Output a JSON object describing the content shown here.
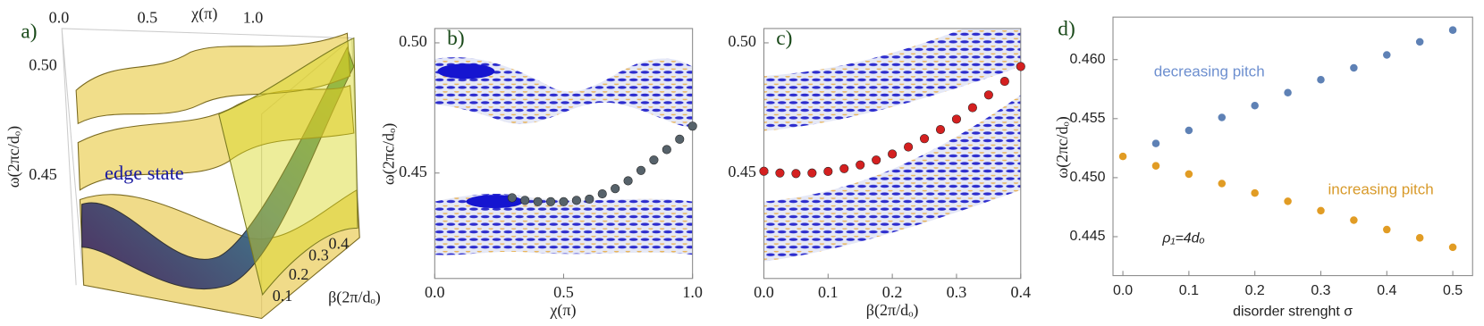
{
  "chart_data": [
    {
      "type": "surface3d",
      "panel_label": "a)",
      "xlabel": "χ(π)",
      "ylabel": "β(2π/dₒ)",
      "zlabel": "ω(2πc/dₒ)",
      "xticks": [
        {
          "value": 0,
          "label": "0.0"
        },
        0.5,
        {
          "value": 1,
          "label": "1.0"
        }
      ],
      "yticks": [
        0.1,
        0.2,
        0.3,
        0.4
      ],
      "zticks": [
        {
          "value": 0.5,
          "label": "0.50"
        },
        0.45
      ],
      "annotation": "edge state"
    },
    {
      "type": "scatter",
      "panel_label": "b)",
      "xlabel": "χ(π)",
      "ylabel": "ω(2πc/dₒ)",
      "xlim": [
        0,
        1
      ],
      "ylim": [
        0.4095,
        0.5055
      ],
      "xticks": [
        {
          "value": 0,
          "label": "0.0"
        },
        0.5,
        {
          "value": 1,
          "label": "1.0"
        }
      ],
      "yticks": [
        0.45,
        {
          "value": 0.5,
          "label": "0.50"
        }
      ],
      "x": [
        0.3,
        0.35,
        0.4,
        0.45,
        0.5,
        0.55,
        0.6,
        0.65,
        0.7,
        0.75,
        0.8,
        0.85,
        0.9,
        0.95,
        1.0
      ],
      "series": [
        {
          "color": "#56626a",
          "values": [
            0.4405,
            0.4395,
            0.439,
            0.439,
            0.439,
            0.4395,
            0.44,
            0.442,
            0.444,
            0.447,
            0.451,
            0.455,
            0.459,
            0.463,
            0.468
          ]
        }
      ]
    },
    {
      "type": "scatter",
      "panel_label": "c)",
      "xlabel": "β(2π/dₒ)",
      "ylabel": "ω(2πc/dₒ)",
      "xlim": [
        0,
        0.4
      ],
      "ylim": [
        0.4095,
        0.5055
      ],
      "xticks": [
        {
          "value": 0,
          "label": "0.0"
        },
        0.1,
        0.2,
        0.3,
        0.4
      ],
      "yticks": [
        0.45,
        {
          "value": 0.5,
          "label": "0.50"
        }
      ],
      "x": [
        0,
        0.025,
        0.05,
        0.075,
        0.1,
        0.125,
        0.15,
        0.175,
        0.2,
        0.225,
        0.25,
        0.275,
        0.3,
        0.325,
        0.35,
        0.375,
        0.4
      ],
      "series": [
        {
          "color": "#d42020",
          "values": [
            0.4507,
            0.45,
            0.4498,
            0.45,
            0.4506,
            0.4517,
            0.4531,
            0.455,
            0.4573,
            0.46,
            0.4632,
            0.4667,
            0.4707,
            0.4751,
            0.48,
            0.4852,
            0.4909
          ]
        }
      ]
    },
    {
      "type": "scatter",
      "panel_label": "d)",
      "xlabel": "disorder strenght σ",
      "ylabel": "ω(2πc/dₒ)",
      "xlim": [
        -0.015,
        0.53
      ],
      "ylim": [
        0.4417,
        0.4636
      ],
      "xticks": [
        {
          "value": 0,
          "label": "0.0"
        },
        0.1,
        0.2,
        0.3,
        0.4,
        0.5
      ],
      "yticks": [
        0.445,
        {
          "value": 0.45,
          "label": "0.450"
        },
        0.455,
        {
          "value": 0.46,
          "label": "0.460"
        }
      ],
      "x": [
        0,
        0.05,
        0.1,
        0.15,
        0.2,
        0.25,
        0.3,
        0.35,
        0.4,
        0.45,
        0.5
      ],
      "series": [
        {
          "name": "decreasing pitch",
          "color": "#5e81b5",
          "values": [
            null,
            0.4529,
            0.454,
            0.4551,
            0.4561,
            0.4572,
            0.4583,
            0.4593,
            0.4604,
            0.4615,
            0.4625
          ]
        },
        {
          "name": "increasing pitch",
          "color": "#e19c24",
          "values": [
            0.4518,
            0.451,
            0.4503,
            0.4495,
            0.4487,
            0.448,
            0.4472,
            0.4464,
            0.4456,
            0.4449,
            0.4441
          ]
        }
      ],
      "annotation": "ρ₁=4dₒ"
    }
  ]
}
